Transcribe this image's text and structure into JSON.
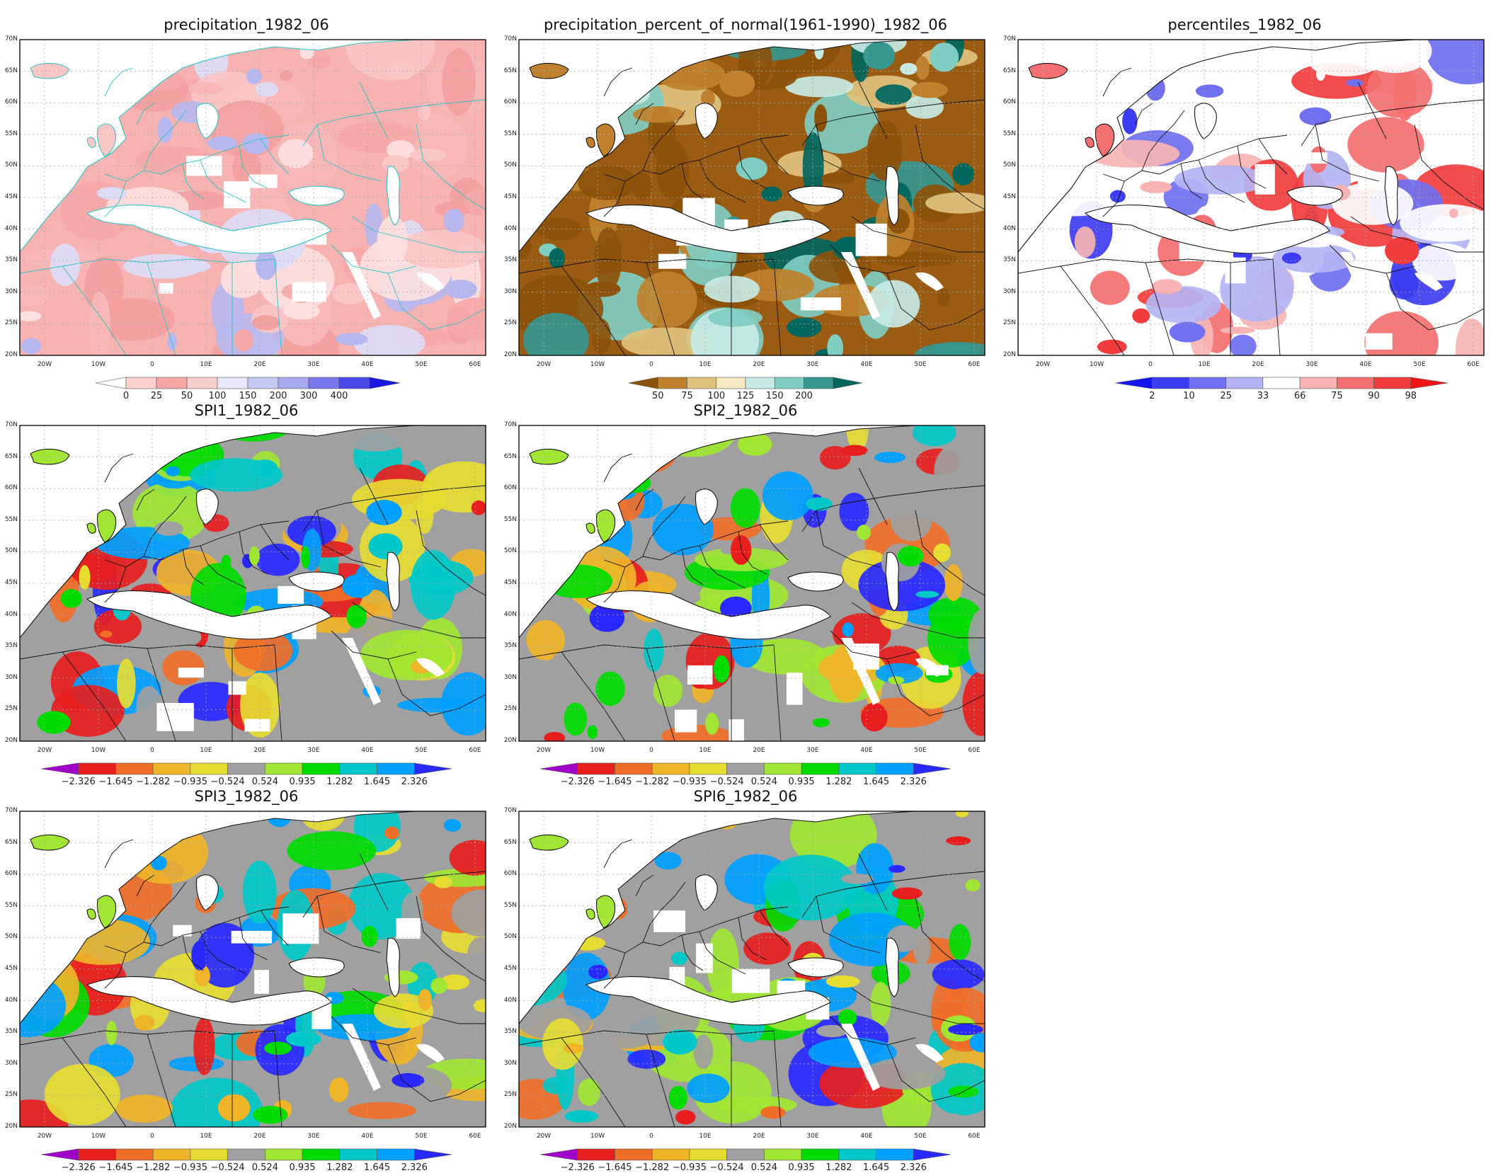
{
  "panels": [
    {
      "id": "precip",
      "title": "precipitation_1982_06",
      "col": 0,
      "row": 0,
      "colorbar": {
        "labels": [
          "0",
          "25",
          "50",
          "100",
          "150",
          "200",
          "300",
          "400"
        ],
        "colors": [
          "#ffffff",
          "#fdd0d0",
          "#f7a6a6",
          "#f6cfcf",
          "#e8e8f8",
          "#c8c8f4",
          "#a8a8f0",
          "#7878ec",
          "#4848e8",
          "#1818e0"
        ],
        "style": "precip"
      }
    },
    {
      "id": "percent",
      "title": "precipitation_percent_of_normal(1961-1990)_1982_06",
      "col": 1,
      "row": 0,
      "colorbar": {
        "labels": [
          "50",
          "75",
          "100",
          "125",
          "150",
          "200"
        ],
        "colors": [
          "#8c510a",
          "#bf812d",
          "#dfc27d",
          "#f6e8c3",
          "#c7eae5",
          "#80cdc1",
          "#35978f",
          "#01665e"
        ],
        "style": "brbg"
      }
    },
    {
      "id": "percentiles",
      "title": "percentiles_1982_06",
      "col": 2,
      "row": 0,
      "colorbar": {
        "labels": [
          "2",
          "10",
          "25",
          "33",
          "66",
          "75",
          "90",
          "98"
        ],
        "colors": [
          "#1414f0",
          "#3c3cf0",
          "#7070f0",
          "#b4b4f4",
          "#ffffff",
          "#f8b4b4",
          "#f47070",
          "#f03c3c",
          "#f01414"
        ],
        "style": "bwr"
      }
    },
    {
      "id": "spi1",
      "title": "SPI1_1982_06",
      "col": 0,
      "row": 1,
      "colorbar": {
        "labels": [
          "−2.326",
          "−1.645",
          "−1.282",
          "−0.935",
          "−0.524",
          "0.524",
          "0.935",
          "1.282",
          "1.645",
          "2.326"
        ],
        "colors": [
          "#a000c8",
          "#e61e1e",
          "#f06e28",
          "#f0b428",
          "#e6dc32",
          "#a0a0a0",
          "#a0e632",
          "#00dc00",
          "#00c8c8",
          "#00a0ff",
          "#2828ff"
        ],
        "style": "spi"
      }
    },
    {
      "id": "spi2",
      "title": "SPI2_1982_06",
      "col": 1,
      "row": 1,
      "colorbar": {
        "labels": [
          "−2.326",
          "−1.645",
          "−1.282",
          "−0.935",
          "−0.524",
          "0.524",
          "0.935",
          "1.282",
          "1.645",
          "2.326"
        ],
        "colors": [
          "#a000c8",
          "#e61e1e",
          "#f06e28",
          "#f0b428",
          "#e6dc32",
          "#a0a0a0",
          "#a0e632",
          "#00dc00",
          "#00c8c8",
          "#00a0ff",
          "#2828ff"
        ],
        "style": "spi"
      }
    },
    {
      "id": "spi3",
      "title": "SPI3_1982_06",
      "col": 0,
      "row": 2,
      "colorbar": {
        "labels": [
          "−2.326",
          "−1.645",
          "−1.282",
          "−0.935",
          "−0.524",
          "0.524",
          "0.935",
          "1.282",
          "1.645",
          "2.326"
        ],
        "colors": [
          "#a000c8",
          "#e61e1e",
          "#f06e28",
          "#f0b428",
          "#e6dc32",
          "#a0a0a0",
          "#a0e632",
          "#00dc00",
          "#00c8c8",
          "#00a0ff",
          "#2828ff"
        ],
        "style": "spi"
      }
    },
    {
      "id": "spi6",
      "title": "SPI6_1982_06",
      "col": 1,
      "row": 2,
      "colorbar": {
        "labels": [
          "−2.326",
          "−1.645",
          "−1.282",
          "−0.935",
          "−0.524",
          "0.524",
          "0.935",
          "1.282",
          "1.645",
          "2.326"
        ],
        "colors": [
          "#a000c8",
          "#e61e1e",
          "#f06e28",
          "#f0b428",
          "#e6dc32",
          "#a0a0a0",
          "#a0e632",
          "#00dc00",
          "#00c8c8",
          "#00a0ff",
          "#2828ff"
        ],
        "style": "spi"
      }
    }
  ],
  "axes": {
    "lat_labels": [
      "70N",
      "65N",
      "60N",
      "55N",
      "50N",
      "45N",
      "40N",
      "35N",
      "30N",
      "25N",
      "20N"
    ],
    "lon_labels": [
      "20W",
      "10W",
      "0",
      "10E",
      "20E",
      "30E",
      "40E",
      "50E",
      "60E"
    ]
  },
  "blob_palettes": {
    "precip": [
      "#f6a9a9",
      "#fbc6c6",
      "#f8b8b8",
      "#dcdcf6",
      "#b8b8f0",
      "#f3a0a0",
      "#fde0e0"
    ],
    "brbg": [
      "#8c510a",
      "#bf812d",
      "#dfc27d",
      "#c7eae5",
      "#80cdc1",
      "#35978f",
      "#01665e",
      "#8c510a"
    ],
    "bwr": [
      "#ffffff",
      "#f47070",
      "#f03c3c",
      "#f8b4b4",
      "#7070f0",
      "#3c3cf0",
      "#b4b4f4",
      "#ffffff"
    ],
    "spi": [
      "#a0a0a0",
      "#a0e632",
      "#00dc00",
      "#00c8c8",
      "#00a0ff",
      "#e6dc32",
      "#f0b428",
      "#f06e28",
      "#e61e1e",
      "#2828ff"
    ]
  },
  "base_colors": {
    "precip": "#f7b2b2",
    "brbg": "#9a5b12",
    "bwr": "#ffffff",
    "spi": "#a0a0a0"
  }
}
